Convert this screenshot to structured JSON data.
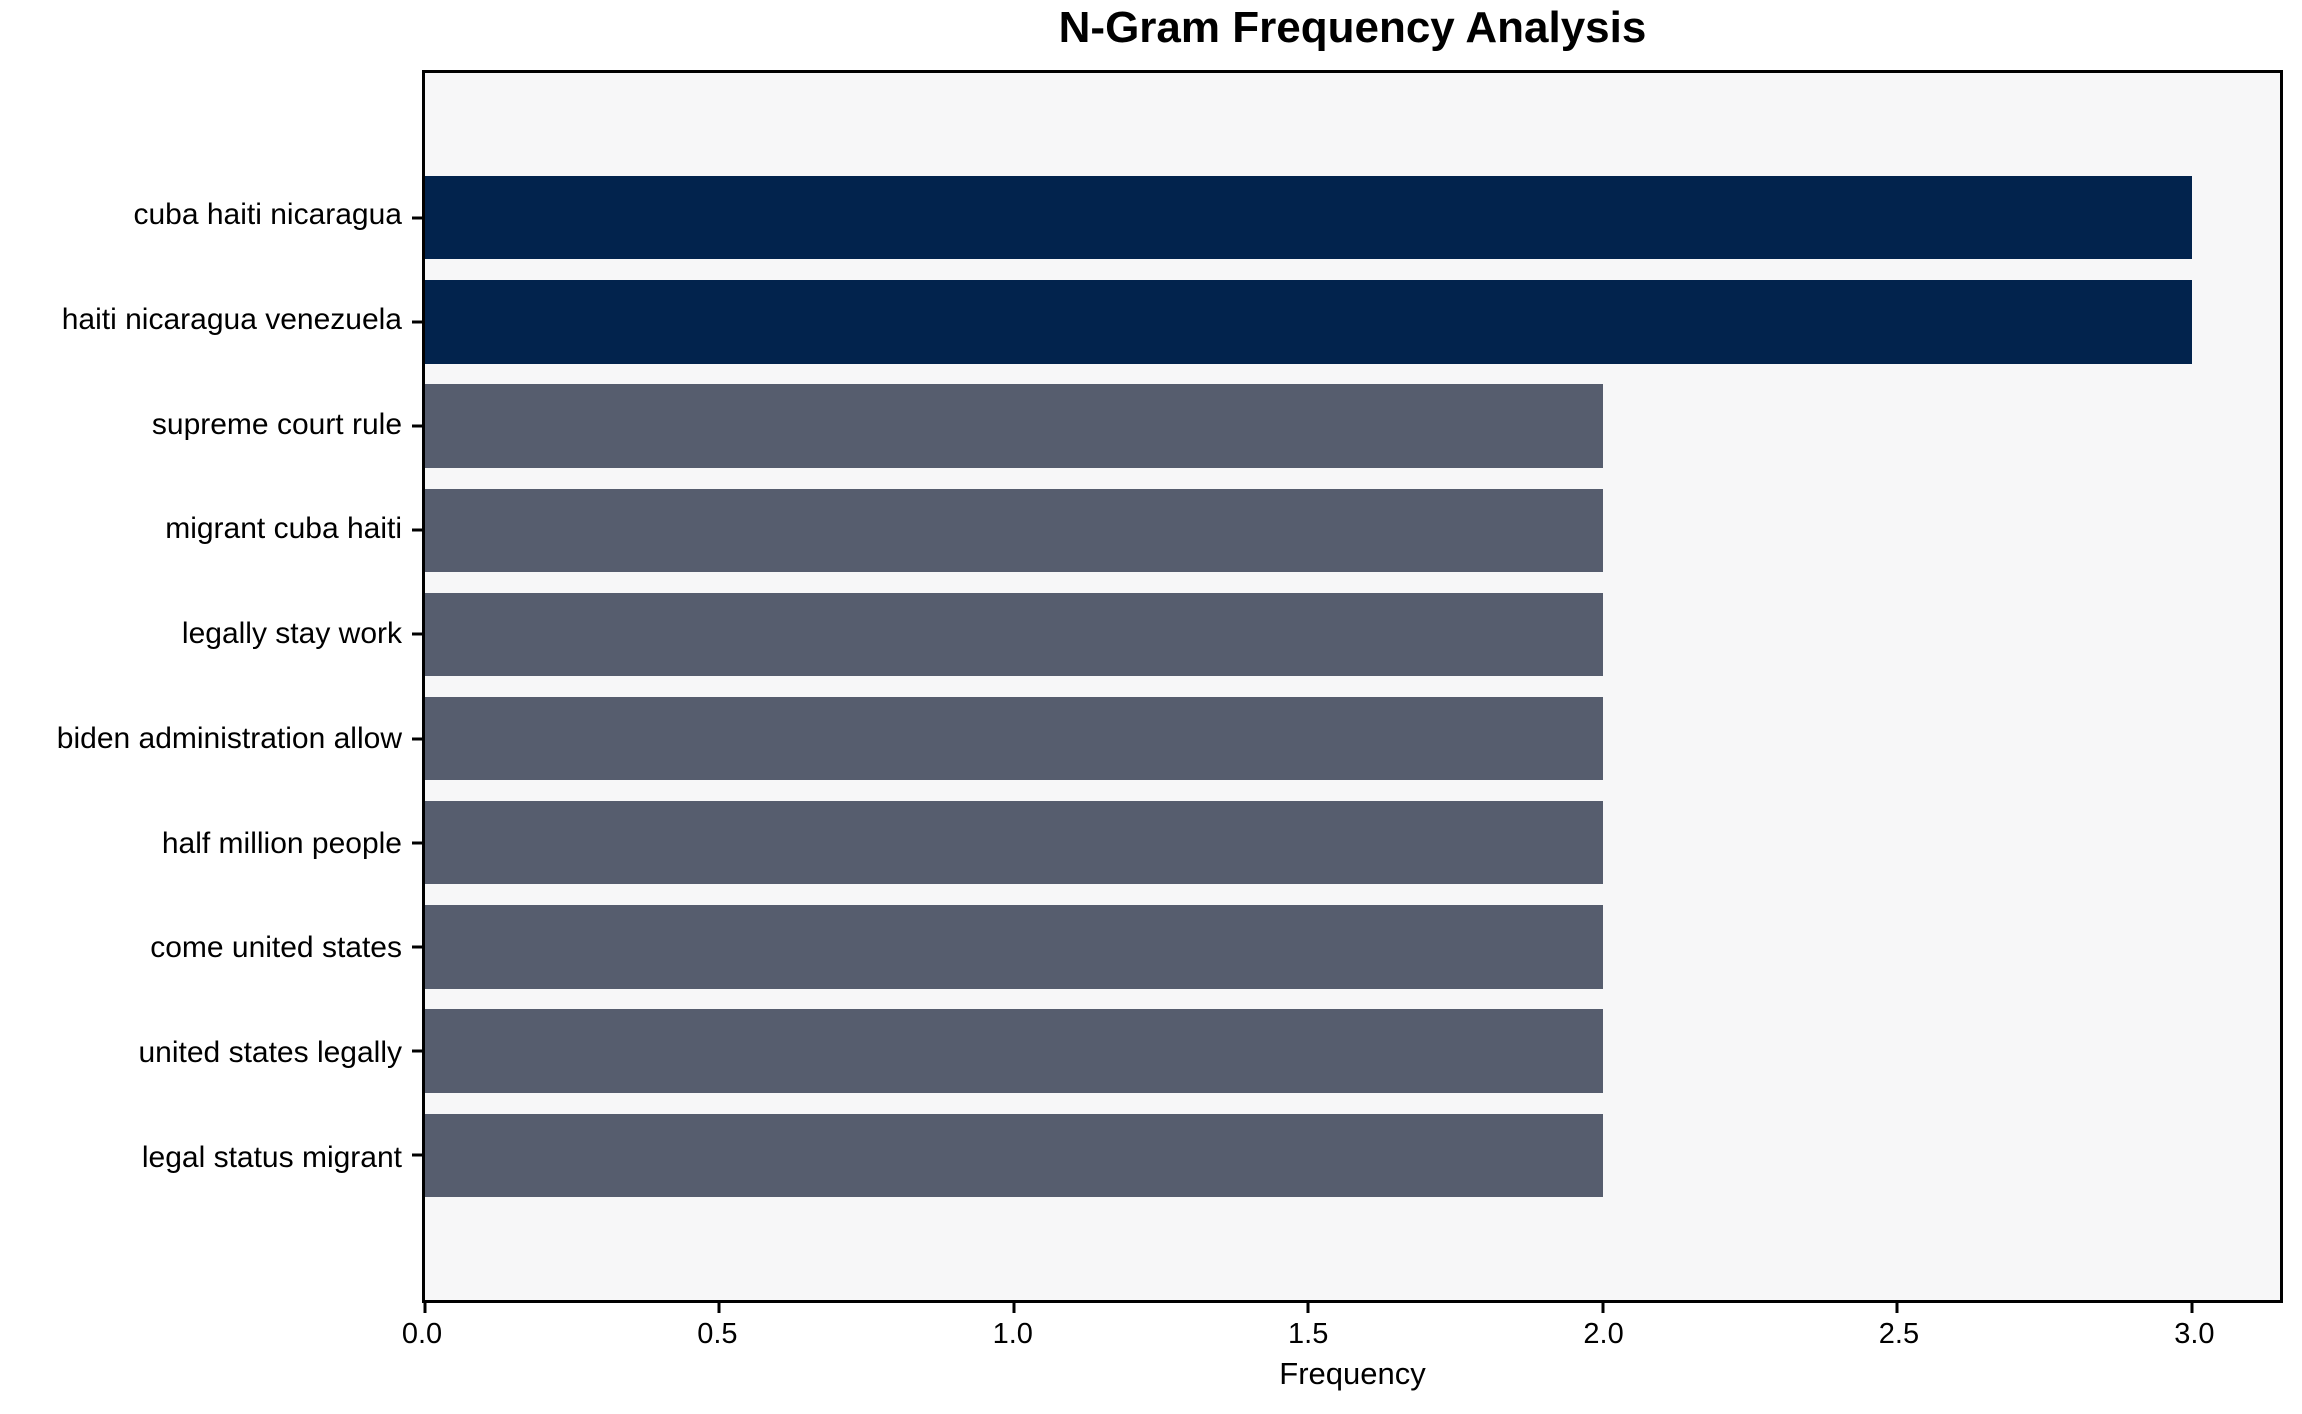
{
  "title": "N-Gram Frequency Analysis",
  "chart_data": {
    "type": "bar",
    "orientation": "horizontal",
    "title": "N-Gram Frequency Analysis",
    "xlabel": "Frequency",
    "ylabel": "",
    "categories": [
      "cuba haiti nicaragua",
      "haiti nicaragua venezuela",
      "supreme court rule",
      "migrant cuba haiti",
      "legally stay work",
      "biden administration allow",
      "half million people",
      "come united states",
      "united states legally",
      "legal status migrant"
    ],
    "values": [
      3,
      3,
      2,
      2,
      2,
      2,
      2,
      2,
      2,
      2
    ],
    "bar_colors": [
      "#02234d",
      "#02234d",
      "#565d6e",
      "#565d6e",
      "#565d6e",
      "#565d6e",
      "#565d6e",
      "#565d6e",
      "#565d6e",
      "#565d6e"
    ],
    "xlim": [
      0,
      3.15
    ],
    "xticks": [
      {
        "value": 0.0,
        "label": "0.0"
      },
      {
        "value": 0.5,
        "label": "0.5"
      },
      {
        "value": 1.0,
        "label": "1.0"
      },
      {
        "value": 1.5,
        "label": "1.5"
      },
      {
        "value": 2.0,
        "label": "2.0"
      },
      {
        "value": 2.5,
        "label": "2.5"
      },
      {
        "value": 3.0,
        "label": "3.0"
      }
    ],
    "grid": false,
    "legend": null,
    "bar_height_fraction": 0.8,
    "axis_padding_slots": 0.89
  },
  "colors": {
    "highlight_bar": "#02234d",
    "normal_bar": "#565d6e",
    "plot_background": "#f7f7f8",
    "figure_background": "#ffffff",
    "spine": "#000000",
    "text": "#000000"
  }
}
